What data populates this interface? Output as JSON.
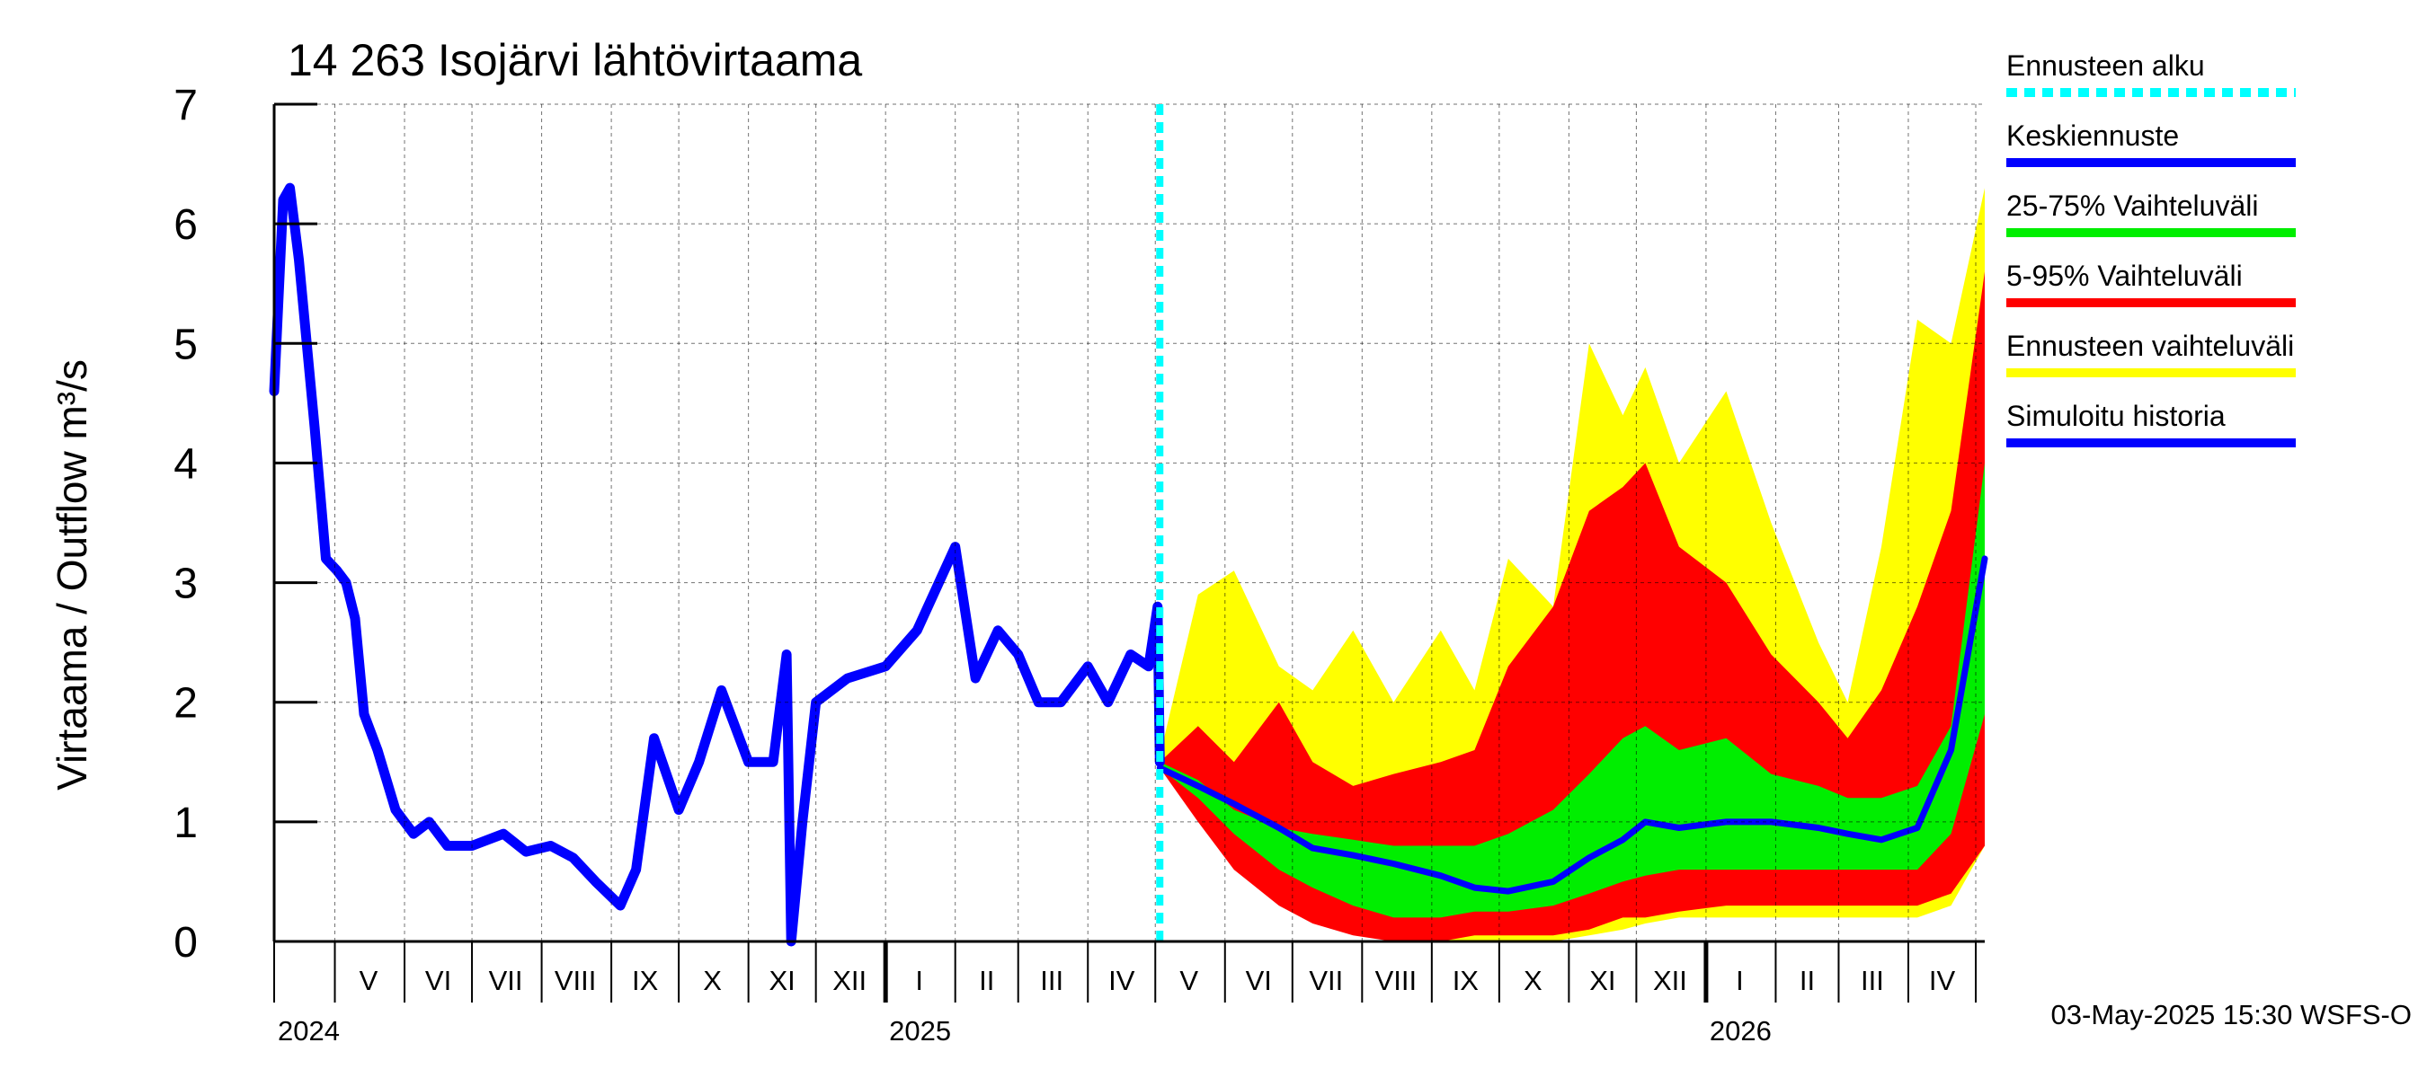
{
  "chart_data": {
    "type": "area",
    "title": "14 263 Isojärvi lähtövirtaama",
    "ylabel": "Virtaama / Outflow    m³/s",
    "ylim": [
      0,
      7
    ],
    "yticks": [
      0,
      1,
      2,
      3,
      4,
      5,
      6,
      7
    ],
    "xlim": [
      "2024-04-04",
      "2026-05-05"
    ],
    "grid": true,
    "legend_position": "right",
    "forecast_start": "2025-05-03",
    "month_ticks": [
      "2024-05-01",
      "2024-06-01",
      "2024-07-01",
      "2024-08-01",
      "2024-09-01",
      "2024-10-01",
      "2024-11-01",
      "2024-12-01",
      "2025-01-01",
      "2025-02-01",
      "2025-03-01",
      "2025-04-01",
      "2025-05-01",
      "2025-06-01",
      "2025-07-01",
      "2025-08-01",
      "2025-09-01",
      "2025-10-01",
      "2025-11-01",
      "2025-12-01",
      "2026-01-01",
      "2026-02-01",
      "2026-03-01",
      "2026-04-01",
      "2026-05-01"
    ],
    "month_labels": [
      {
        "label": "V",
        "x": "2024-05-16"
      },
      {
        "label": "VI",
        "x": "2024-06-16"
      },
      {
        "label": "VII",
        "x": "2024-07-16"
      },
      {
        "label": "VIII",
        "x": "2024-08-16"
      },
      {
        "label": "IX",
        "x": "2024-09-16"
      },
      {
        "label": "X",
        "x": "2024-10-16"
      },
      {
        "label": "XI",
        "x": "2024-11-16"
      },
      {
        "label": "XII",
        "x": "2024-12-16"
      },
      {
        "label": "I",
        "x": "2025-01-16"
      },
      {
        "label": "II",
        "x": "2025-02-15"
      },
      {
        "label": "III",
        "x": "2025-03-16"
      },
      {
        "label": "IV",
        "x": "2025-04-16"
      },
      {
        "label": "V",
        "x": "2025-05-16"
      },
      {
        "label": "VI",
        "x": "2025-06-16"
      },
      {
        "label": "VII",
        "x": "2025-07-16"
      },
      {
        "label": "VIII",
        "x": "2025-08-16"
      },
      {
        "label": "IX",
        "x": "2025-09-16"
      },
      {
        "label": "X",
        "x": "2025-10-16"
      },
      {
        "label": "XI",
        "x": "2025-11-16"
      },
      {
        "label": "XII",
        "x": "2025-12-16"
      },
      {
        "label": "I",
        "x": "2026-01-16"
      },
      {
        "label": "II",
        "x": "2026-02-15"
      },
      {
        "label": "III",
        "x": "2026-03-16"
      },
      {
        "label": "IV",
        "x": "2026-04-16"
      }
    ],
    "year_labels": [
      {
        "label": "2024",
        "x": "2024-04-04"
      },
      {
        "label": "2025",
        "x": "2025-01-01"
      },
      {
        "label": "2026",
        "x": "2026-01-01"
      }
    ],
    "year_ticks": [
      "2025-01-01",
      "2026-01-01"
    ],
    "series": [
      {
        "name": "Ennusteen vaihteluväli",
        "color": "#ffff00",
        "kind": "band",
        "x": [
          "2025-05-03",
          "2025-05-20",
          "2025-06-05",
          "2025-06-25",
          "2025-07-10",
          "2025-07-28",
          "2025-08-15",
          "2025-09-05",
          "2025-09-20",
          "2025-10-05",
          "2025-10-25",
          "2025-11-10",
          "2025-11-25",
          "2025-12-05",
          "2025-12-20",
          "2026-01-10",
          "2026-01-30",
          "2026-02-20",
          "2026-03-05",
          "2026-03-20",
          "2026-04-05",
          "2026-04-20",
          "2026-05-05"
        ],
        "upper": [
          1.55,
          2.9,
          3.1,
          2.3,
          2.1,
          2.6,
          2.0,
          2.6,
          2.1,
          3.2,
          2.8,
          5.0,
          4.4,
          4.8,
          4.0,
          4.6,
          3.5,
          2.5,
          2.0,
          3.3,
          5.2,
          5.0,
          6.3
        ],
        "lower": [
          1.45,
          1.2,
          0.7,
          0.4,
          0.3,
          0.1,
          0.0,
          0.0,
          0.0,
          0.0,
          0.0,
          0.05,
          0.1,
          0.15,
          0.2,
          0.2,
          0.2,
          0.2,
          0.2,
          0.2,
          0.2,
          0.3,
          0.8
        ]
      },
      {
        "name": "5-95% Vaihteluväli",
        "color": "#ff0000",
        "kind": "band",
        "x": [
          "2025-05-03",
          "2025-05-20",
          "2025-06-05",
          "2025-06-25",
          "2025-07-10",
          "2025-07-28",
          "2025-08-15",
          "2025-09-05",
          "2025-09-20",
          "2025-10-05",
          "2025-10-25",
          "2025-11-10",
          "2025-11-25",
          "2025-12-05",
          "2025-12-20",
          "2026-01-10",
          "2026-01-30",
          "2026-02-20",
          "2026-03-05",
          "2026-03-20",
          "2026-04-05",
          "2026-04-20",
          "2026-05-05"
        ],
        "upper": [
          1.5,
          1.8,
          1.5,
          2.0,
          1.5,
          1.3,
          1.4,
          1.5,
          1.6,
          2.3,
          2.8,
          3.6,
          3.8,
          4.0,
          3.3,
          3.0,
          2.4,
          2.0,
          1.7,
          2.1,
          2.8,
          3.6,
          5.6
        ],
        "lower": [
          1.45,
          1.0,
          0.6,
          0.3,
          0.15,
          0.05,
          0.0,
          0.0,
          0.05,
          0.05,
          0.05,
          0.1,
          0.2,
          0.2,
          0.25,
          0.3,
          0.3,
          0.3,
          0.3,
          0.3,
          0.3,
          0.4,
          0.8
        ]
      },
      {
        "name": "25-75% Vaihteluväli",
        "color": "#00ee00",
        "kind": "band",
        "x": [
          "2025-05-03",
          "2025-05-20",
          "2025-06-05",
          "2025-06-25",
          "2025-07-10",
          "2025-07-28",
          "2025-08-15",
          "2025-09-05",
          "2025-09-20",
          "2025-10-05",
          "2025-10-25",
          "2025-11-10",
          "2025-11-25",
          "2025-12-05",
          "2025-12-20",
          "2026-01-10",
          "2026-01-30",
          "2026-02-20",
          "2026-03-05",
          "2026-03-20",
          "2026-04-05",
          "2026-04-20",
          "2026-05-05"
        ],
        "upper": [
          1.5,
          1.35,
          1.1,
          0.95,
          0.9,
          0.85,
          0.8,
          0.8,
          0.8,
          0.9,
          1.1,
          1.4,
          1.7,
          1.8,
          1.6,
          1.7,
          1.4,
          1.3,
          1.2,
          1.2,
          1.3,
          1.8,
          4.0
        ],
        "lower": [
          1.45,
          1.2,
          0.9,
          0.6,
          0.45,
          0.3,
          0.2,
          0.2,
          0.25,
          0.25,
          0.3,
          0.4,
          0.5,
          0.55,
          0.6,
          0.6,
          0.6,
          0.6,
          0.6,
          0.6,
          0.6,
          0.9,
          1.9
        ]
      },
      {
        "name": "Keskiennuste",
        "color": "#0000ff",
        "kind": "line",
        "width": 7,
        "x": [
          "2025-05-03",
          "2025-05-20",
          "2025-06-05",
          "2025-06-25",
          "2025-07-10",
          "2025-07-28",
          "2025-08-15",
          "2025-09-05",
          "2025-09-20",
          "2025-10-05",
          "2025-10-25",
          "2025-11-10",
          "2025-11-25",
          "2025-12-05",
          "2025-12-20",
          "2026-01-10",
          "2026-01-30",
          "2026-02-20",
          "2026-03-05",
          "2026-03-20",
          "2026-04-05",
          "2026-04-20",
          "2026-05-05"
        ],
        "values": [
          1.45,
          1.3,
          1.15,
          0.95,
          0.78,
          0.72,
          0.65,
          0.55,
          0.45,
          0.42,
          0.5,
          0.7,
          0.85,
          1.0,
          0.95,
          1.0,
          1.0,
          0.95,
          0.9,
          0.85,
          0.95,
          1.6,
          3.2
        ]
      },
      {
        "name": "Simuloitu historia",
        "color": "#0000ff",
        "kind": "line",
        "width": 11,
        "x": [
          "2024-04-04",
          "2024-04-08",
          "2024-04-11",
          "2024-04-15",
          "2024-04-18",
          "2024-04-22",
          "2024-04-27",
          "2024-05-02",
          "2024-05-06",
          "2024-05-10",
          "2024-05-14",
          "2024-05-20",
          "2024-05-28",
          "2024-06-05",
          "2024-06-12",
          "2024-06-20",
          "2024-07-01",
          "2024-07-15",
          "2024-07-25",
          "2024-08-05",
          "2024-08-15",
          "2024-08-25",
          "2024-09-05",
          "2024-09-12",
          "2024-09-20",
          "2024-10-01",
          "2024-10-10",
          "2024-10-20",
          "2024-11-01",
          "2024-11-12",
          "2024-11-18",
          "2024-11-20",
          "2024-11-25",
          "2024-12-01",
          "2024-12-15",
          "2025-01-01",
          "2025-01-15",
          "2025-02-01",
          "2025-02-10",
          "2025-02-20",
          "2025-03-01",
          "2025-03-10",
          "2025-03-20",
          "2025-04-01",
          "2025-04-10",
          "2025-04-20",
          "2025-04-28",
          "2025-05-02",
          "2025-05-03"
        ],
        "values": [
          4.6,
          6.2,
          6.3,
          5.7,
          5.1,
          4.3,
          3.2,
          3.1,
          3.0,
          2.7,
          1.9,
          1.6,
          1.1,
          0.9,
          1.0,
          0.8,
          0.8,
          0.9,
          0.75,
          0.8,
          0.7,
          0.5,
          0.3,
          0.6,
          1.7,
          1.1,
          1.5,
          2.1,
          1.5,
          1.5,
          2.4,
          0.0,
          1.0,
          2.0,
          2.2,
          2.3,
          2.6,
          3.3,
          2.2,
          2.6,
          2.4,
          2.0,
          2.0,
          2.3,
          2.0,
          2.4,
          2.3,
          2.8,
          1.5
        ]
      }
    ],
    "legend": [
      {
        "label": "Ennusteen alku",
        "color": "#00ffff",
        "dashed": true
      },
      {
        "label": "Keskiennuste",
        "color": "#0000ff",
        "dashed": false
      },
      {
        "label": "25-75% Vaihteluväli",
        "color": "#00ee00",
        "dashed": false
      },
      {
        "label": "5-95% Vaihteluväli",
        "color": "#ff0000",
        "dashed": false
      },
      {
        "label": "Ennusteen vaihteluväli",
        "color": "#ffff00",
        "dashed": false
      },
      {
        "label": "Simuloitu historia",
        "color": "#0000ff",
        "dashed": false
      }
    ],
    "footer": "03-May-2025 15:30 WSFS-O"
  }
}
